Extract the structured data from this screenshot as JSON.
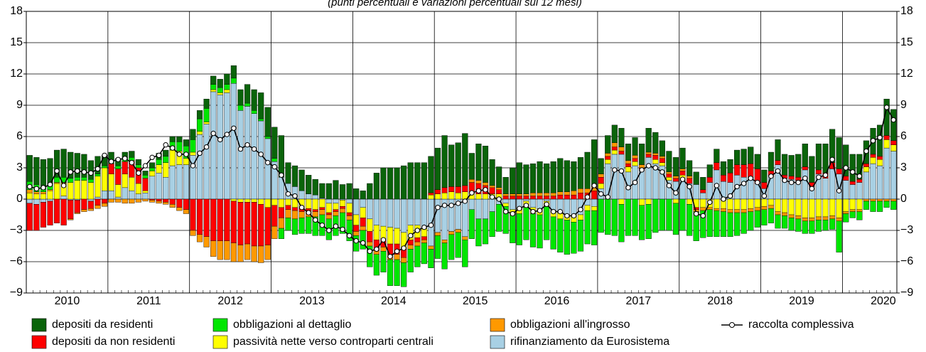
{
  "chart_data": {
    "type": "bar",
    "subtitle": "(punti percentuali e variazioni percentuali sui 12 mesi)",
    "categories": [
      "2010",
      null,
      null,
      null,
      null,
      null,
      null,
      null,
      null,
      null,
      null,
      null,
      "2011",
      null,
      null,
      null,
      null,
      null,
      null,
      null,
      null,
      null,
      null,
      null,
      "2012",
      null,
      null,
      null,
      null,
      null,
      null,
      null,
      null,
      null,
      null,
      null,
      "2013",
      null,
      null,
      null,
      null,
      null,
      null,
      null,
      null,
      null,
      null,
      null,
      "2014",
      null,
      null,
      null,
      null,
      null,
      null,
      null,
      null,
      null,
      null,
      null,
      "2015",
      null,
      null,
      null,
      null,
      null,
      null,
      null,
      null,
      null,
      null,
      null,
      "2016",
      null,
      null,
      null,
      null,
      null,
      null,
      null,
      null,
      null,
      null,
      null,
      "2017",
      null,
      null,
      null,
      null,
      null,
      null,
      null,
      null,
      null,
      null,
      null,
      "2018",
      null,
      null,
      null,
      null,
      null,
      null,
      null,
      null,
      null,
      null,
      null,
      "2019",
      null,
      null,
      null,
      null,
      null,
      null,
      null,
      null,
      null,
      null,
      null,
      "2020",
      null,
      null,
      null,
      null,
      null,
      null,
      null
    ],
    "ylim": [
      -9,
      18
    ],
    "yticks": [
      {
        "value": -9,
        "label": "−9"
      },
      {
        "value": -6,
        "label": "−6"
      },
      {
        "value": -3,
        "label": "−3"
      },
      0,
      3,
      6,
      9,
      12,
      15,
      18
    ],
    "grid": true,
    "series": [
      {
        "name": "depositi da residenti",
        "color": "#0a640a",
        "values": [
          2.5,
          2.6,
          2.5,
          2.4,
          2.6,
          2.7,
          2.5,
          2.3,
          2.2,
          1.8,
          1.7,
          1.0,
          0.8,
          0.7,
          0.6,
          0.6,
          0.5,
          0.4,
          0.5,
          0.6,
          0.6,
          0.5,
          0.5,
          0.6,
          1.0,
          0.8,
          0.9,
          0.8,
          0.8,
          1.0,
          1.2,
          1.5,
          1.8,
          2.0,
          2.5,
          2.8,
          3.0,
          4.0,
          2.0,
          2.0,
          2.0,
          1.8,
          1.5,
          1.4,
          1.5,
          1.8,
          1.4,
          1.5,
          1.0,
          0.8,
          1.5,
          2.5,
          3.0,
          3.0,
          3.0,
          3.2,
          3.5,
          3.5,
          3.5,
          3.5,
          4.0,
          5.0,
          4.0,
          4.2,
          5.0,
          2.5,
          3.5,
          3.5,
          2.5,
          2.0,
          1.6,
          2.5,
          3.0,
          2.8,
          2.8,
          3.0,
          2.8,
          3.0,
          3.2,
          3.0,
          2.8,
          3.0,
          3.5,
          4.5,
          1.5,
          1.7,
          1.7,
          1.8,
          1.6,
          1.7,
          2.0,
          2.3,
          2.0,
          1.5,
          2.0,
          1.8,
          2.0,
          1.5,
          1.2,
          1.2,
          1.2,
          1.3,
          1.3,
          1.3,
          1.4,
          1.5,
          1.6,
          1.4,
          1.2,
          1.8,
          2.0,
          2.0,
          2.0,
          2.2,
          2.2,
          2.5,
          2.5,
          2.8,
          3.2,
          3.0,
          3.0,
          2.6,
          2.4,
          2.2,
          2.5,
          3.0,
          3.5,
          3.0
        ]
      },
      {
        "name": "depositi da non residenti",
        "color": "#ff0000",
        "values": [
          -2.6,
          -2.5,
          -2.4,
          -2.3,
          -2.3,
          -2.5,
          -1.8,
          -1.2,
          -1.0,
          -0.7,
          -0.6,
          -0.4,
          1.0,
          1.5,
          1.2,
          1.6,
          1.5,
          1.2,
          -0.1,
          -0.2,
          -0.3,
          -0.5,
          -0.8,
          -1.0,
          -3.0,
          -3.4,
          -3.6,
          -4.0,
          -4.0,
          -4.0,
          -4.0,
          -4.1,
          -4.0,
          -4.2,
          -4.0,
          -3.6,
          -2.0,
          -1.0,
          -0.4,
          -0.3,
          -0.3,
          -0.2,
          -0.2,
          -0.2,
          -0.2,
          -0.2,
          -0.2,
          -0.3,
          -0.6,
          -0.8,
          -1.0,
          -1.0,
          -0.8,
          -1.0,
          -1.0,
          -0.8,
          -0.5,
          -0.4,
          -0.3,
          0.2,
          0.4,
          0.5,
          0.5,
          0.6,
          0.6,
          1.0,
          1.0,
          0.8,
          0.6,
          0.4,
          0.3,
          0.3,
          0.3,
          0.3,
          0.3,
          0.3,
          0.3,
          0.3,
          0.4,
          0.4,
          0.4,
          0.6,
          0.6,
          0.8,
          0.6,
          0.3,
          0.3,
          0.3,
          0.3,
          0.3,
          0.2,
          0.3,
          0.4,
          0.4,
          0.3,
          0.3,
          0.4,
          0.5,
          -0.2,
          0.3,
          0.5,
          0.7,
          0.6,
          0.9,
          1.0,
          1.2,
          1.3,
          1.4,
          0.6,
          0.5,
          0.4,
          0.3,
          0.3,
          0.3,
          0.3,
          0.4,
          0.4,
          0.5,
          0.6,
          0.5,
          0.4,
          0.3,
          0.3,
          0.3,
          0.3,
          0.3,
          0.4,
          0.4
        ]
      },
      {
        "name": "obbligazioni al dettaglio",
        "color": "#00e600",
        "values": [
          0.8,
          0.7,
          0.6,
          0.6,
          0.5,
          0.5,
          0.4,
          0.3,
          0.3,
          0.3,
          0.2,
          0.2,
          0.3,
          0.3,
          0.3,
          0.3,
          0.3,
          0.3,
          0.3,
          0.5,
          0.6,
          0.8,
          0.9,
          1.2,
          1.2,
          1.2,
          1.3,
          0.5,
          0.5,
          0.5,
          0.5,
          0.5,
          0.3,
          0.3,
          0.2,
          0.2,
          0.3,
          -1.0,
          -1.2,
          -1.5,
          -1.5,
          -1.6,
          -1.8,
          -2.0,
          -2.0,
          -1.9,
          -2.0,
          -2.0,
          -1.5,
          -1.8,
          -2.0,
          -2.0,
          -2.0,
          -2.5,
          -2.5,
          -2.3,
          -2.2,
          -2.0,
          -2.0,
          -1.8,
          -2.2,
          -2.5,
          -2.4,
          -2.4,
          -2.6,
          -2.8,
          -2.6,
          -2.4,
          -2.4,
          -2.6,
          -2.6,
          -2.7,
          -3.0,
          -3.1,
          -3.2,
          -3.2,
          -3.2,
          -3.1,
          -3.2,
          -3.3,
          -3.0,
          -3.0,
          -3.2,
          -3.3,
          -3.2,
          -3.4,
          -3.5,
          -3.6,
          -3.5,
          -3.5,
          -3.3,
          -3.3,
          -3.2,
          -3.0,
          -3.0,
          -3.0,
          -3.0,
          -3.0,
          -2.8,
          -2.6,
          -2.6,
          -2.5,
          -2.4,
          -2.3,
          -2.2,
          -2.0,
          -1.8,
          -1.6,
          -1.5,
          -1.4,
          -1.3,
          -1.2,
          -1.2,
          -1.2,
          -1.2,
          -1.2,
          -1.1,
          -1.0,
          -1.0,
          -3.0,
          -0.8,
          -0.6,
          -0.8,
          -0.8,
          -1.0,
          -1.0,
          -0.6,
          -0.8
        ]
      },
      {
        "name": "passività nette verso controparti centrali",
        "color": "#ffff00",
        "values": [
          0.6,
          0.5,
          0.5,
          0.8,
          1.5,
          1.2,
          1.6,
          1.8,
          1.8,
          1.6,
          2.0,
          2.2,
          1.6,
          1.2,
          1.3,
          1.3,
          1.0,
          0.2,
          0.5,
          0.8,
          1.4,
          1.5,
          1.3,
          0.6,
          0.3,
          0.3,
          0.2,
          0.2,
          0.2,
          0.3,
          -0.2,
          -0.3,
          -0.3,
          -0.3,
          -0.5,
          -0.8,
          -0.6,
          -0.8,
          -0.6,
          -0.8,
          -0.9,
          -0.9,
          -1.0,
          -0.8,
          -0.9,
          -0.6,
          -0.6,
          -0.9,
          -1.0,
          -1.0,
          -1.2,
          -1.4,
          -1.2,
          -1.6,
          -1.5,
          -1.6,
          -1.4,
          -1.2,
          -0.8,
          0.4,
          0.5,
          0.6,
          0.7,
          0.6,
          0.7,
          0.6,
          0.5,
          0.5,
          0.5,
          0.5,
          -0.3,
          -0.5,
          -0.5,
          -0.6,
          -0.6,
          -0.6,
          -0.5,
          -0.6,
          -0.6,
          -0.5,
          -0.6,
          -0.5,
          -0.5,
          -0.4,
          0.5,
          0.4,
          0.4,
          -0.5,
          0.5,
          0.4,
          -0.6,
          -0.5,
          0.4,
          0.3,
          0.3,
          -0.4,
          0.5,
          -0.5,
          -0.8,
          -0.8,
          -0.8,
          -0.9,
          -0.9,
          -1.0,
          -1.0,
          -1.0,
          -0.9,
          -0.8,
          -0.7,
          -0.6,
          -1.2,
          -1.3,
          -1.5,
          -1.6,
          -1.8,
          -1.8,
          -1.7,
          -1.7,
          -1.6,
          -1.8,
          -1.2,
          -1.0,
          -1.0,
          0.5,
          0.6,
          0.6,
          0.8,
          0.6
        ]
      },
      {
        "name": "obbligazioni all'ingrosso",
        "color": "#ff9900",
        "values": [
          0.3,
          0.2,
          0.2,
          0.1,
          0.1,
          0.1,
          -0.1,
          -0.1,
          -0.2,
          -0.2,
          -0.3,
          -0.3,
          -0.3,
          -0.3,
          -0.4,
          -0.4,
          -0.3,
          -0.2,
          -0.2,
          -0.2,
          -0.2,
          -0.3,
          -0.3,
          -0.4,
          -0.5,
          -0.7,
          -1.0,
          -1.5,
          -1.8,
          -1.8,
          -1.8,
          -1.6,
          -1.5,
          -1.5,
          -1.6,
          -1.4,
          -1.2,
          -1.0,
          -0.8,
          -0.8,
          -0.6,
          -0.6,
          -0.5,
          -0.5,
          -0.4,
          -0.4,
          -0.4,
          -0.4,
          -0.4,
          -0.4,
          -0.4,
          -0.4,
          -0.4,
          -0.5,
          -0.5,
          -0.5,
          -0.4,
          -0.4,
          -0.3,
          -0.3,
          -0.3,
          -0.3,
          -0.3,
          -0.3,
          -0.3,
          0.3,
          0.3,
          0.3,
          0.2,
          0.2,
          0.2,
          0.2,
          0.2,
          0.2,
          0.3,
          0.3,
          0.3,
          0.3,
          0.3,
          0.3,
          0.4,
          0.4,
          0.4,
          0.4,
          0.3,
          0.3,
          0.4,
          0.4,
          0.3,
          0.3,
          0.3,
          0.2,
          0.2,
          0.2,
          0.2,
          0.2,
          0.2,
          0.2,
          -0.2,
          -0.3,
          -0.2,
          -0.2,
          -0.3,
          -0.3,
          -0.3,
          -0.3,
          -0.3,
          -0.3,
          -0.3,
          -0.3,
          -0.3,
          -0.3,
          -0.3,
          -0.3,
          -0.3,
          -0.3,
          -0.3,
          -0.3,
          -0.3,
          -0.3,
          -0.2,
          -0.2,
          -0.2,
          -0.2,
          -0.2,
          -0.2,
          -0.2,
          -0.2
        ]
      },
      {
        "name": "rifinanziamento da Eurosistema",
        "color": "#a8d0e4",
        "values": [
          -0.4,
          -0.5,
          -0.3,
          -0.2,
          0.0,
          0.3,
          -0.1,
          -0.1,
          0.0,
          -0.2,
          0.2,
          0.8,
          0.8,
          0.2,
          1.1,
          0.8,
          0.5,
          0.6,
          2.2,
          2.5,
          2.1,
          3.2,
          3.3,
          3.3,
          4.2,
          6.2,
          7.2,
          10.3,
          10.0,
          10.2,
          11.1,
          8.5,
          8.9,
          8.2,
          7.5,
          5.8,
          3.6,
          2.1,
          1.5,
          1.2,
          0.8,
          0.5,
          0.4,
          0.1,
          -0.4,
          -0.4,
          -0.1,
          -0.4,
          -1.5,
          -0.8,
          -1.9,
          -2.5,
          -2.6,
          -2.7,
          -2.8,
          -3.2,
          -2.5,
          -2.5,
          -2.8,
          -4.5,
          -3.2,
          -3.9,
          -3.1,
          -2.9,
          -3.6,
          -1.0,
          -1.9,
          -1.9,
          -1.2,
          -0.5,
          -0.4,
          -1.0,
          -0.9,
          -0.2,
          -0.8,
          -0.9,
          -0.2,
          -1.1,
          -1.3,
          -1.5,
          -1.6,
          -1.5,
          -0.6,
          -0.7,
          1.0,
          3.4,
          4.3,
          4.3,
          2.6,
          3.2,
          2.8,
          4.0,
          3.4,
          3.2,
          1.8,
          1.7,
          1.8,
          1.5,
          1.4,
          0.6,
          1.6,
          2.8,
          1.7,
          1.6,
          2.3,
          2.1,
          2.1,
          1.5,
          1.0,
          2.2,
          3.3,
          2.0,
          1.9,
          1.8,
          2.8,
          1.2,
          2.4,
          2.0,
          2.9,
          2.4,
          1.8,
          1.4,
          1.6,
          2.6,
          3.4,
          3.2,
          4.9,
          4.6
        ]
      },
      {
        "name": "raccolta complessiva",
        "type": "line",
        "color": "#000000",
        "values": [
          1.2,
          1.0,
          1.1,
          1.4,
          2.7,
          1.3,
          2.6,
          2.7,
          2.6,
          2.5,
          2.9,
          4.2,
          3.6,
          3.8,
          3.9,
          3.5,
          2.5,
          3.2,
          4.0,
          4.2,
          5.2,
          4.9,
          4.3,
          4.3,
          3.2,
          4.4,
          5.0,
          6.3,
          5.7,
          6.2,
          6.8,
          4.8,
          5.2,
          4.8,
          4.3,
          3.5,
          3.1,
          2.3,
          0.5,
          0.3,
          -0.8,
          -1.3,
          -2.0,
          -2.5,
          -3.0,
          -2.6,
          -2.9,
          -3.5,
          -4.0,
          -4.2,
          -5.0,
          -4.8,
          -3.9,
          -5.5,
          -5.0,
          -4.7,
          -3.5,
          -3.0,
          -2.7,
          -2.5,
          -0.8,
          -0.6,
          -0.6,
          -0.4,
          -0.2,
          0.6,
          0.8,
          0.9,
          0.2,
          0.0,
          -1.2,
          -1.4,
          -0.9,
          -0.6,
          -1.2,
          -1.1,
          -0.5,
          -1.2,
          -1.2,
          -1.6,
          -1.6,
          -1.0,
          0.2,
          1.3,
          0.5,
          0.2,
          2.8,
          2.7,
          1.1,
          1.6,
          2.8,
          3.2,
          3.0,
          2.6,
          1.3,
          0.6,
          1.9,
          1.2,
          -1.4,
          -1.6,
          -0.3,
          1.3,
          0.0,
          0.3,
          1.2,
          1.5,
          2.0,
          1.6,
          0.3,
          2.2,
          2.7,
          1.8,
          1.6,
          1.6,
          2.0,
          1.0,
          2.1,
          2.3,
          3.8,
          0.8,
          3.0,
          2.6,
          2.2,
          4.6,
          5.6,
          5.9,
          8.8,
          7.6
        ]
      }
    ]
  }
}
